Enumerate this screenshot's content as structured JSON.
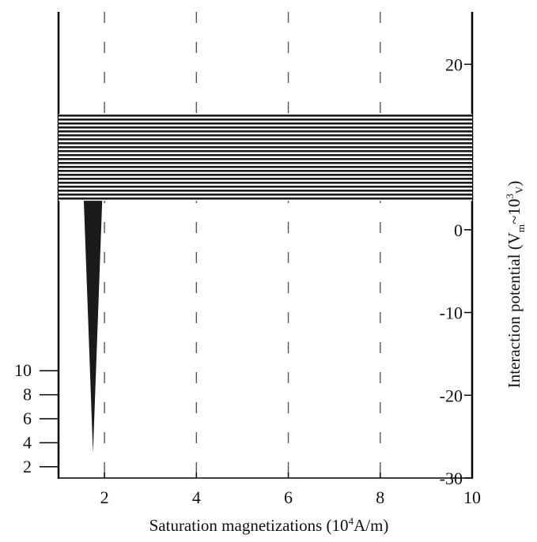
{
  "chart_data": {
    "type": "area",
    "xlabel_parts": [
      "Saturation magnetizations (10",
      "4",
      "A/m)"
    ],
    "ylabel_parts": [
      "Interaction potential (V",
      "m",
      "~10",
      "3",
      "V",
      ")"
    ],
    "x_ticks": [
      "2",
      "4",
      "6",
      "8",
      "10"
    ],
    "left_y_ticks": [
      "2",
      "4",
      "6",
      "8",
      "10"
    ],
    "right_y_ticks": [
      "20",
      "0",
      "-10",
      "-20",
      "-30"
    ],
    "xlim": [
      1,
      10
    ],
    "right_ylim": [
      -30,
      25
    ],
    "left_ylim": [
      1,
      11
    ],
    "grid": "dashed vertical at x = 2, 4, 6, 8",
    "series": [
      {
        "band": {
          "x_start": 1,
          "x_end": 10,
          "y_top": 14,
          "y_bottom": 3.5
        },
        "hatching": "dense horizontal",
        "spike": {
          "x": [
            1.55,
            1.95
          ],
          "y_top": 3.5,
          "y_min": -27
        }
      }
    ]
  }
}
